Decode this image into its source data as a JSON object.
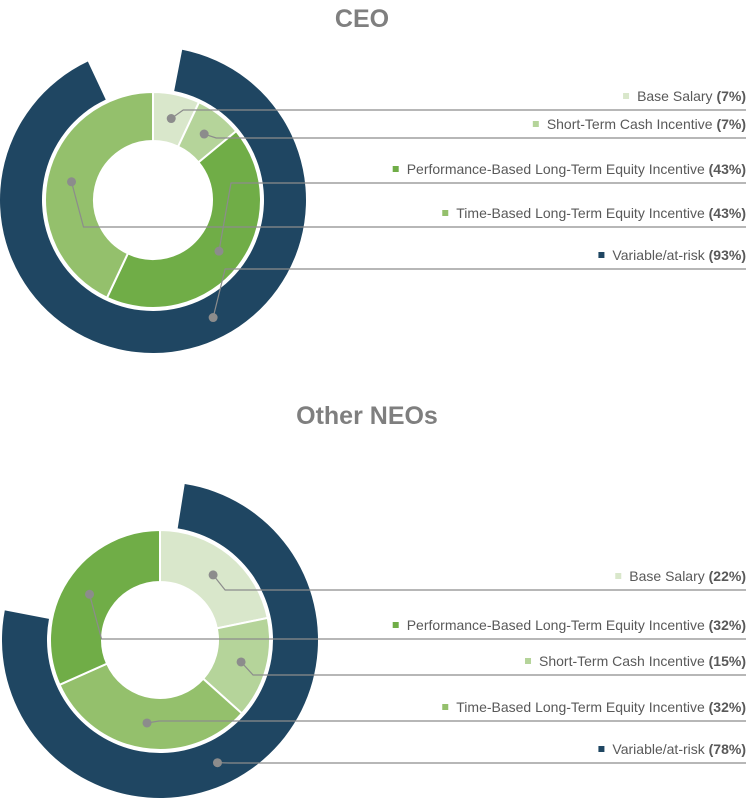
{
  "chart_data": [
    {
      "type": "pie",
      "title": "CEO",
      "inner_ring": [
        {
          "name": "Base Salary",
          "value": 7,
          "label": "7%",
          "color": "#d9e7cb"
        },
        {
          "name": "Short-Term Cash Incentive",
          "value": 7,
          "label": "7%",
          "color": "#b5d49a"
        },
        {
          "name": "Performance-Based Long-Term Equity Incentive",
          "value": 43,
          "label": "43%",
          "color": "#70ad47"
        },
        {
          "name": "Time-Based Long-Term Equity Incentive",
          "value": 43,
          "label": "43%",
          "color": "#94c06c"
        }
      ],
      "outer_ring": {
        "name": "Variable/at-risk",
        "value": 93,
        "label": "93%",
        "color": "#1f4662"
      },
      "legend": [
        {
          "name": "Base Salary",
          "pct": "(7%)",
          "color": "#d9e7cb"
        },
        {
          "name": "Short-Term Cash Incentive",
          "pct": "(7%)",
          "color": "#b5d49a"
        },
        {
          "name": "Performance-Based Long-Term Equity Incentive",
          "pct": "(43%)",
          "color": "#70ad47"
        },
        {
          "name": "Time-Based Long-Term Equity Incentive",
          "pct": "(43%)",
          "color": "#94c06c"
        },
        {
          "name": "Variable/at-risk",
          "pct": "(93%)",
          "color": "#1f4662"
        }
      ]
    },
    {
      "type": "pie",
      "title": "Other NEOs",
      "inner_ring": [
        {
          "name": "Base Salary",
          "value": 22,
          "label": "22%",
          "color": "#d9e7cb"
        },
        {
          "name": "Short-Term Cash Incentive",
          "value": 15,
          "label": "15%",
          "color": "#b5d49a"
        },
        {
          "name": "Time-Based Long-Term Equity Incentive",
          "value": 32,
          "label": "32%",
          "color": "#94c06c"
        },
        {
          "name": "Performance-Based Long-Term Equity Incentive",
          "value": 32,
          "label": "32%",
          "color": "#70ad47"
        }
      ],
      "outer_ring": {
        "name": "Variable/at-risk",
        "value": 78,
        "label": "78%",
        "color": "#1f4662"
      },
      "legend": [
        {
          "name": "Base Salary",
          "pct": "(22%)",
          "color": "#d9e7cb"
        },
        {
          "name": "Performance-Based Long-Term Equity Incentive",
          "pct": "(32%)",
          "color": "#70ad47"
        },
        {
          "name": "Short-Term Cash Incentive",
          "pct": "(15%)",
          "color": "#b5d49a"
        },
        {
          "name": "Time-Based Long-Term Equity Incentive",
          "pct": "(32%)",
          "color": "#94c06c"
        },
        {
          "name": "Variable/at-risk",
          "pct": "(78%)",
          "color": "#1f4662"
        }
      ]
    }
  ]
}
